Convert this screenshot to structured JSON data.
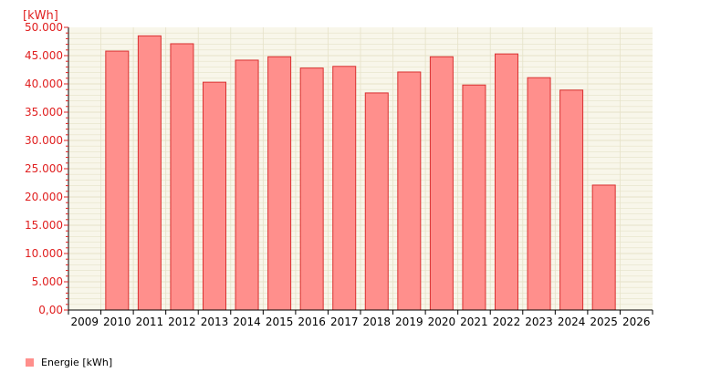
{
  "chart_data": {
    "type": "bar",
    "ylabel": "[kWh]",
    "categories": [
      "2009",
      "2010",
      "2011",
      "2012",
      "2013",
      "2014",
      "2015",
      "2016",
      "2017",
      "2018",
      "2019",
      "2020",
      "2021",
      "2022",
      "2023",
      "2024",
      "2025",
      "2026"
    ],
    "series": [
      {
        "name": "Energie [kWh]",
        "values": [
          null,
          45800,
          48500,
          47100,
          40300,
          44200,
          44800,
          42800,
          43100,
          38400,
          42100,
          44800,
          39800,
          45300,
          41100,
          38900,
          22100,
          null
        ]
      }
    ],
    "ylim": [
      0,
      50000
    ],
    "yticks": [
      "0,00",
      "5.000",
      "10.000",
      "15.000",
      "20.000",
      "25.000",
      "30.000",
      "35.000",
      "40.000",
      "45.000",
      "50.000"
    ],
    "grid": true,
    "legend_position": "bottom-left",
    "colors": {
      "bar_fill": "#ff8f8c",
      "bar_stroke": "#d93030",
      "plot_background": "#f8f6ea",
      "grid": "#e6e2c8",
      "ytick_text": "#e02020",
      "ylabel_text": "#e02020",
      "axis": "#000000"
    }
  }
}
